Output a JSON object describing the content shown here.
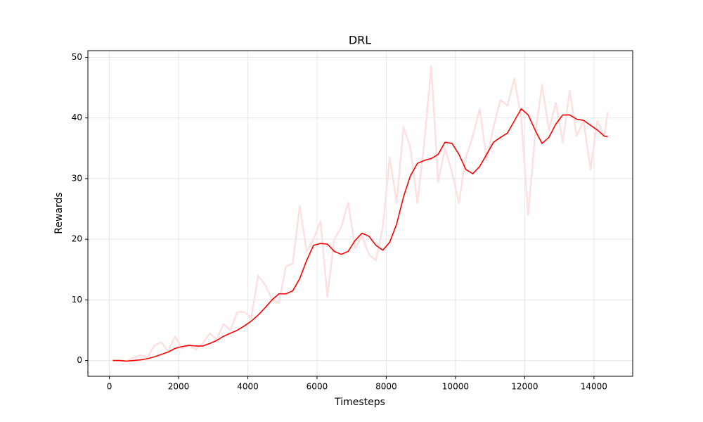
{
  "chart_data": {
    "type": "line",
    "title": "DRL",
    "xlabel": "Timesteps",
    "ylabel": "Rewards",
    "x": [
      100,
      300,
      500,
      700,
      900,
      1100,
      1300,
      1500,
      1700,
      1900,
      2100,
      2300,
      2500,
      2700,
      2900,
      3100,
      3300,
      3500,
      3700,
      3900,
      4100,
      4300,
      4500,
      4700,
      4900,
      5100,
      5300,
      5500,
      5700,
      5900,
      6100,
      6300,
      6500,
      6700,
      6900,
      7100,
      7300,
      7500,
      7700,
      7900,
      8100,
      8300,
      8500,
      8700,
      8900,
      9100,
      9300,
      9500,
      9700,
      9900,
      10100,
      10300,
      10500,
      10700,
      10900,
      11100,
      11300,
      11500,
      11700,
      11900,
      12100,
      12300,
      12500,
      12700,
      12900,
      13100,
      13300,
      13500,
      13700,
      13900,
      14100,
      14300,
      14400
    ],
    "series": [
      {
        "color": "#fde0e0",
        "values": [
          0,
          0,
          -0.1,
          0.5,
          0.9,
          0.5,
          2.5,
          3.0,
          1.5,
          4.0,
          2.0,
          2.5,
          1.8,
          2.8,
          4.5,
          3.5,
          6.0,
          5.0,
          8.0,
          8.0,
          7.0,
          14.0,
          12.5,
          10.0,
          9.5,
          15.5,
          16.0,
          25.5,
          18.0,
          20.0,
          23.0,
          10.5,
          20.0,
          22.0,
          26.0,
          18.5,
          20.5,
          17.5,
          16.5,
          22.0,
          33.5,
          26.0,
          38.5,
          35.0,
          26.0,
          36.0,
          48.5,
          29.5,
          35.0,
          31.0,
          26.0,
          33.5,
          37.0,
          41.5,
          33.0,
          38.5,
          43.0,
          42.0,
          46.5,
          40.0,
          24.0,
          37.0,
          45.5,
          38.0,
          42.5,
          36.0,
          44.5,
          37.0,
          39.5,
          31.5,
          39.5,
          37.0,
          41.0
        ]
      },
      {
        "color": "#ff0000",
        "values": [
          0,
          0,
          -0.1,
          0,
          0.1,
          0.3,
          0.6,
          1.0,
          1.4,
          2.0,
          2.3,
          2.5,
          2.4,
          2.4,
          2.8,
          3.3,
          4.0,
          4.5,
          5.0,
          5.7,
          6.5,
          7.5,
          8.7,
          10.0,
          11.0,
          11.0,
          11.5,
          13.5,
          16.5,
          19.0,
          19.3,
          19.2,
          18.0,
          17.5,
          18.0,
          19.8,
          21.0,
          20.5,
          19.0,
          18.2,
          19.5,
          22.5,
          27.0,
          30.5,
          32.5,
          33.0,
          33.3,
          34.0,
          36.0,
          35.8,
          34.0,
          31.5,
          30.8,
          32.0,
          34.0,
          36.0,
          36.8,
          37.5,
          39.5,
          41.5,
          40.5,
          38.0,
          35.8,
          36.8,
          39.0,
          40.5,
          40.5,
          39.8,
          39.6,
          38.8,
          38.0,
          37.0,
          36.9
        ]
      }
    ],
    "xlim": [
      -620,
      15120
    ],
    "ylim": [
      -2.6,
      51.1
    ],
    "xticks": [
      0,
      2000,
      4000,
      6000,
      8000,
      10000,
      12000,
      14000
    ],
    "yticks": [
      0,
      10,
      20,
      30,
      40,
      50
    ],
    "grid": true
  }
}
